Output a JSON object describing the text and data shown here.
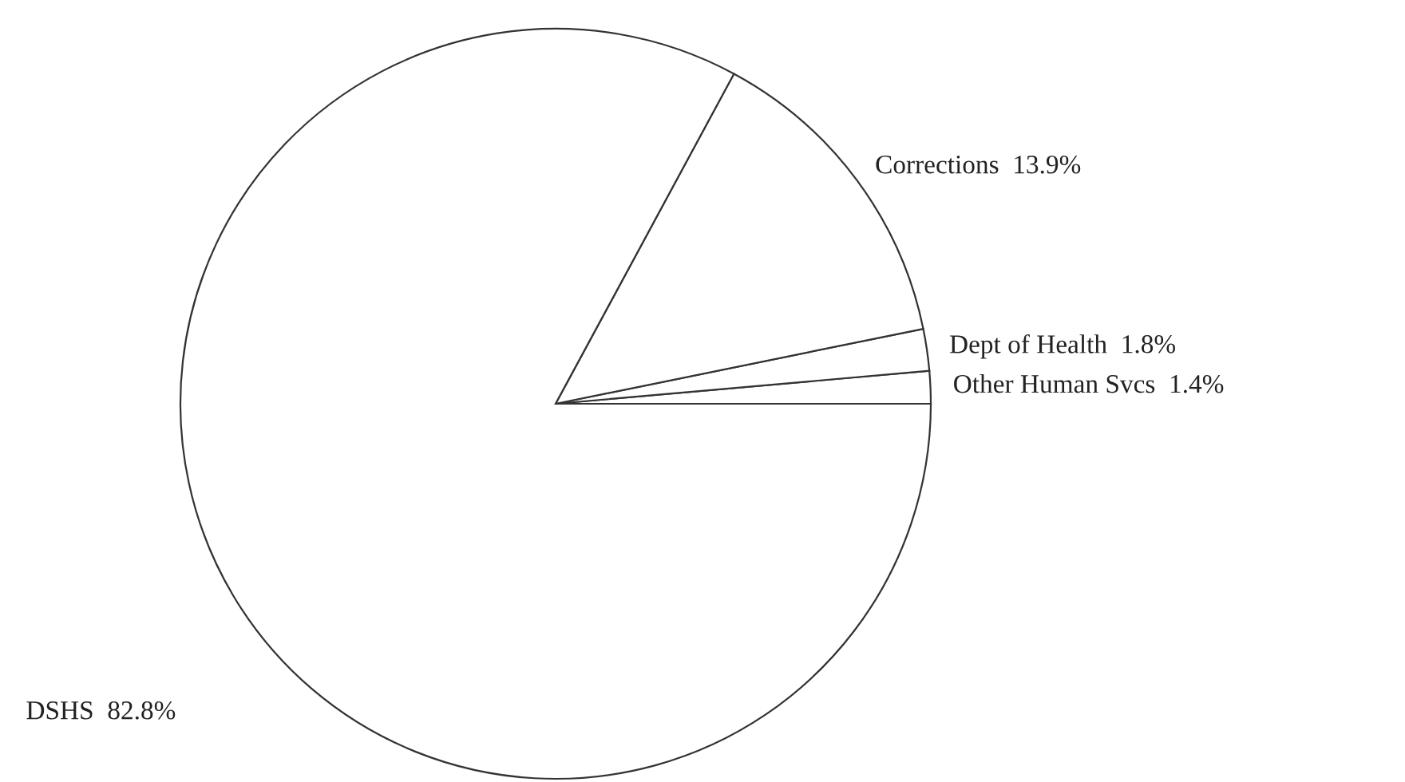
{
  "chart_data": {
    "type": "pie",
    "categories": [
      "Other Human Svcs",
      "Dept of Health",
      "Corrections",
      "DSHS"
    ],
    "values": [
      1.4,
      1.8,
      13.9,
      82.8
    ],
    "value_labels": [
      "1.4%",
      "1.8%",
      "13.9%",
      "82.8%"
    ],
    "colors": [
      "#ffffff",
      "#ffffff",
      "#ffffff",
      "#ffffff"
    ]
  }
}
